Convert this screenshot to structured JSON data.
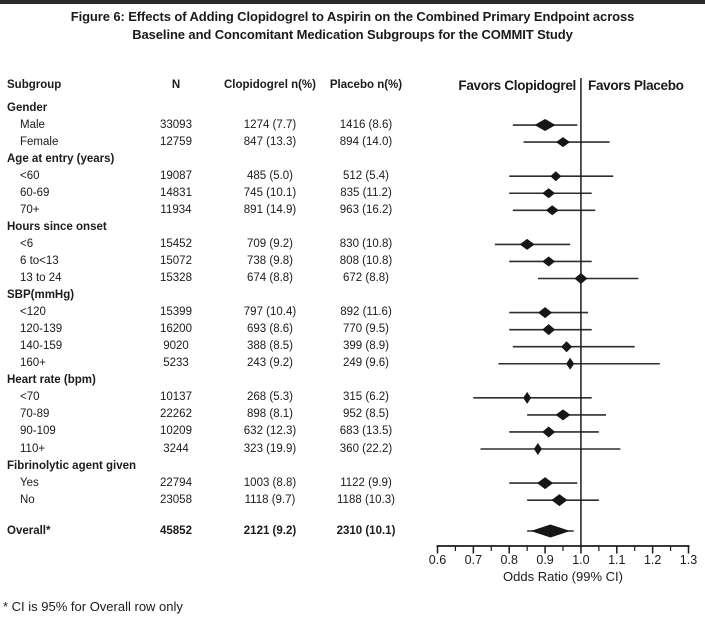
{
  "figure": {
    "title_line1": "Figure 6: Effects of Adding Clopidogrel to Aspirin on the Combined Primary Endpoint across",
    "title_line2": "Baseline and Concomitant Medication Subgroups for the COMMIT Study",
    "footnote": "* CI is 95% for Overall row only"
  },
  "table": {
    "headers": {
      "subgroup": "Subgroup",
      "n": "N",
      "clopidogrel": "Clopidogrel n(%)",
      "placebo": "Placebo n(%)"
    }
  },
  "colors": {
    "text": "#1b1b1b",
    "marker": "#161616",
    "ci_line": "#2e2e2e",
    "axis": "#1b1b1b",
    "topbar": "#2b2b2b",
    "background": "#ffffff"
  },
  "chart_data": {
    "type": "forest",
    "favors_left": "Favors Clopidogrel",
    "favors_right": "Favors Placebo",
    "xlabel": "Odds Ratio (99% CI)",
    "x_ticks": [
      0.6,
      0.7,
      0.8,
      0.9,
      1.0,
      1.1,
      1.2,
      1.3
    ],
    "x_minor_ticks": [
      0.65,
      0.75,
      0.85,
      0.95,
      1.05,
      1.15,
      1.25
    ],
    "xlim": [
      0.6,
      1.3
    ],
    "reference_line": 1.0,
    "grid": false,
    "rows": [
      {
        "type": "group",
        "label": "Gender"
      },
      {
        "type": "item",
        "label": "Male",
        "n": "33093",
        "clopidogrel": "1274 (7.7)",
        "placebo": "1416 (8.6)",
        "or": 0.9,
        "ci_low": 0.81,
        "ci_high": 0.99,
        "marker_w": 21,
        "marker_h": 12
      },
      {
        "type": "item",
        "label": "Female",
        "n": "12759",
        "clopidogrel": "847 (13.3)",
        "placebo": "894 (14.0)",
        "or": 0.95,
        "ci_low": 0.84,
        "ci_high": 1.08,
        "marker_w": 14,
        "marker_h": 10
      },
      {
        "type": "group",
        "label": "Age at entry (years)"
      },
      {
        "type": "item",
        "label": "<60",
        "n": "19087",
        "clopidogrel": "485 (5.0)",
        "placebo": "512 (5.4)",
        "or": 0.93,
        "ci_low": 0.8,
        "ci_high": 1.09,
        "marker_w": 11,
        "marker_h": 10
      },
      {
        "type": "item",
        "label": "60-69",
        "n": "14831",
        "clopidogrel": "745 (10.1)",
        "placebo": "835 (11.2)",
        "or": 0.91,
        "ci_low": 0.8,
        "ci_high": 1.03,
        "marker_w": 13,
        "marker_h": 10
      },
      {
        "type": "item",
        "label": "70+",
        "n": "11934",
        "clopidogrel": "891 (14.9)",
        "placebo": "963 (16.2)",
        "or": 0.92,
        "ci_low": 0.81,
        "ci_high": 1.04,
        "marker_w": 13,
        "marker_h": 10
      },
      {
        "type": "group",
        "label": "Hours since onset"
      },
      {
        "type": "item",
        "label": "<6",
        "n": "15452",
        "clopidogrel": "709 (9.2)",
        "placebo": "830 (10.8)",
        "or": 0.85,
        "ci_low": 0.76,
        "ci_high": 0.97,
        "marker_w": 15,
        "marker_h": 11
      },
      {
        "type": "item",
        "label": "6 to<13",
        "n": "15072",
        "clopidogrel": "738 (9.8)",
        "placebo": "808 (10.8)",
        "or": 0.91,
        "ci_low": 0.8,
        "ci_high": 1.03,
        "marker_w": 13,
        "marker_h": 10
      },
      {
        "type": "item",
        "label": "13 to 24",
        "n": "15328",
        "clopidogrel": "674 (8.8)",
        "placebo": "672 (8.8)",
        "or": 1.0,
        "ci_low": 0.88,
        "ci_high": 1.16,
        "marker_w": 13,
        "marker_h": 11
      },
      {
        "type": "group",
        "label": "SBP(mmHg)"
      },
      {
        "type": "item",
        "label": "<120",
        "n": "15399",
        "clopidogrel": "797 (10.4)",
        "placebo": "892 (11.6)",
        "or": 0.9,
        "ci_low": 0.8,
        "ci_high": 1.02,
        "marker_w": 14,
        "marker_h": 11
      },
      {
        "type": "item",
        "label": "120-139",
        "n": "16200",
        "clopidogrel": "693 (8.6)",
        "placebo": "770 (9.5)",
        "or": 0.91,
        "ci_low": 0.8,
        "ci_high": 1.03,
        "marker_w": 13,
        "marker_h": 11
      },
      {
        "type": "item",
        "label": "140-159",
        "n": "9020",
        "clopidogrel": "388 (8.5)",
        "placebo": "399 (8.9)",
        "or": 0.96,
        "ci_low": 0.81,
        "ci_high": 1.15,
        "marker_w": 11,
        "marker_h": 11
      },
      {
        "type": "item",
        "label": "160+",
        "n": "5233",
        "clopidogrel": "243 (9.2)",
        "placebo": "249 (9.6)",
        "or": 0.97,
        "ci_low": 0.77,
        "ci_high": 1.22,
        "marker_w": 8,
        "marker_h": 12
      },
      {
        "type": "group",
        "label": "Heart rate (bpm)"
      },
      {
        "type": "item",
        "label": "<70",
        "n": "10137",
        "clopidogrel": "268 (5.3)",
        "placebo": "315 (6.2)",
        "or": 0.85,
        "ci_low": 0.7,
        "ci_high": 1.03,
        "marker_w": 8,
        "marker_h": 12
      },
      {
        "type": "item",
        "label": "70-89",
        "n": "22262",
        "clopidogrel": "898 (8.1)",
        "placebo": "952 (8.5)",
        "or": 0.95,
        "ci_low": 0.85,
        "ci_high": 1.07,
        "marker_w": 15,
        "marker_h": 11
      },
      {
        "type": "item",
        "label": "90-109",
        "n": "10209",
        "clopidogrel": "632 (12.3)",
        "placebo": "683 (13.5)",
        "or": 0.91,
        "ci_low": 0.8,
        "ci_high": 1.05,
        "marker_w": 13,
        "marker_h": 11
      },
      {
        "type": "item",
        "label": "110+",
        "n": "3244",
        "clopidogrel": "323 (19.9)",
        "placebo": "360 (22.2)",
        "or": 0.88,
        "ci_low": 0.72,
        "ci_high": 1.11,
        "marker_w": 8,
        "marker_h": 12
      },
      {
        "type": "group",
        "label": "Fibrinolytic agent given"
      },
      {
        "type": "item",
        "label": "Yes",
        "n": "22794",
        "clopidogrel": "1003 (8.8)",
        "placebo": "1122 (9.9)",
        "or": 0.9,
        "ci_low": 0.8,
        "ci_high": 0.99,
        "marker_w": 16,
        "marker_h": 12
      },
      {
        "type": "item",
        "label": "No",
        "n": "23058",
        "clopidogrel": "1118 (9.7)",
        "placebo": "1188 (10.3)",
        "or": 0.94,
        "ci_low": 0.85,
        "ci_high": 1.05,
        "marker_w": 16,
        "marker_h": 12
      },
      {
        "type": "overall",
        "label": "Overall*",
        "n": "45852",
        "clopidogrel": "2121 (9.2)",
        "placebo": "2310 (10.1)",
        "or": 0.91,
        "ci_low": 0.86,
        "ci_high": 0.97,
        "line_low": 0.85,
        "line_high": 0.98,
        "marker_h": 13
      }
    ]
  }
}
